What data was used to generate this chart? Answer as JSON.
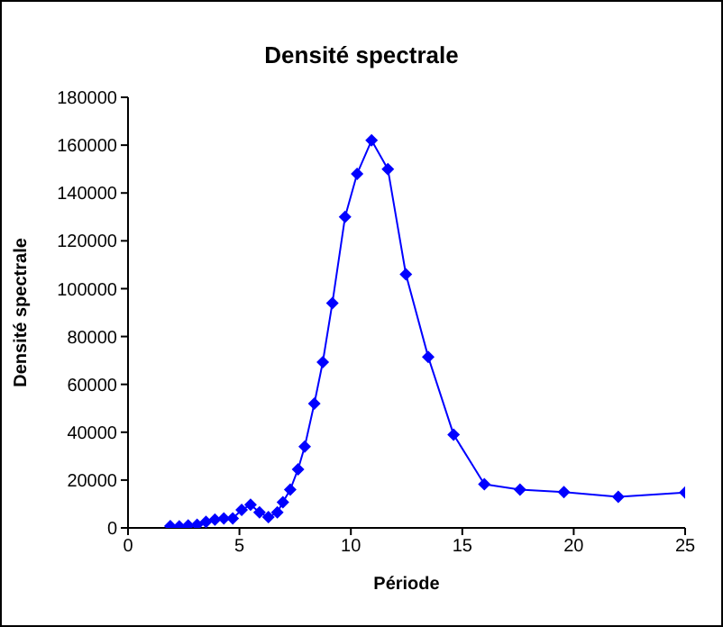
{
  "chart_data": {
    "type": "line",
    "title": "Densité spectrale",
    "xlabel": "Période",
    "ylabel": "Densité spectrale",
    "x": [
      1.9,
      2.3,
      2.7,
      3.1,
      3.5,
      3.9,
      4.3,
      4.7,
      5.1,
      5.5,
      5.9,
      6.3,
      6.7,
      6.95,
      7.28,
      7.63,
      7.93,
      8.36,
      8.74,
      9.17,
      9.74,
      10.28,
      10.93,
      11.66,
      12.47,
      13.47,
      14.61,
      15.99,
      17.59,
      19.56,
      22.0,
      25
    ],
    "series": [
      {
        "color": "#0000ff",
        "values": [
          800,
          700,
          1000,
          1300,
          2500,
          3500,
          4000,
          4000,
          7500,
          9700,
          6500,
          4500,
          6500,
          10700,
          16000,
          24500,
          34000,
          52000,
          69300,
          94000,
          130000,
          148000,
          162000,
          150000,
          106000,
          71500,
          39000,
          18300,
          16000,
          15000,
          13000,
          14800
        ]
      }
    ],
    "xlim": [
      0,
      25
    ],
    "xticks": [
      0,
      5,
      10,
      15,
      20,
      25
    ],
    "ylim": [
      0,
      180000
    ],
    "yticks": [
      0,
      20000,
      40000,
      60000,
      80000,
      100000,
      120000,
      140000,
      160000,
      180000
    ],
    "legend": false,
    "marker": "diamond",
    "line_style": "solid"
  }
}
